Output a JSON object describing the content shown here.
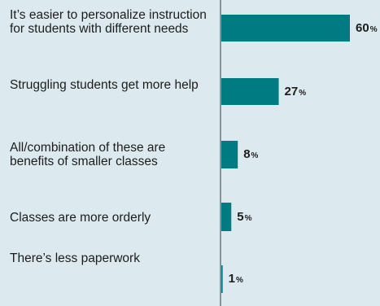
{
  "chart_data": {
    "type": "bar",
    "orientation": "horizontal",
    "categories": [
      "It’s easier to personalize instruction for students with different needs",
      "Struggling students get more help",
      "All/combination of these are benefits of smaller classes",
      "Classes are more orderly",
      "There’s less paperwork"
    ],
    "values": [
      60,
      27,
      8,
      5,
      1
    ],
    "value_suffix": "%",
    "bar_color": "#007b82",
    "xlim": [
      0,
      60
    ],
    "grid": false
  }
}
